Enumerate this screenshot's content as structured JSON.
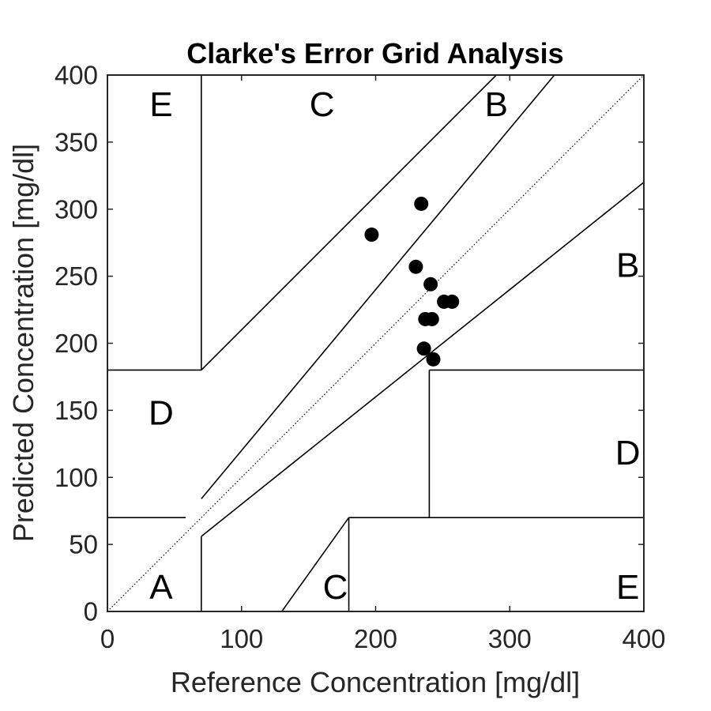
{
  "chart_data": {
    "type": "scatter",
    "title": "Clarke's Error Grid Analysis",
    "xlabel": "Reference Concentration [mg/dl]",
    "ylabel": "Predicted Concentration [mg/dl]",
    "xlim": [
      0,
      400
    ],
    "ylim": [
      0,
      400
    ],
    "xticks": [
      0,
      100,
      200,
      300,
      400
    ],
    "yticks": [
      0,
      50,
      100,
      150,
      200,
      250,
      300,
      350,
      400
    ],
    "grid": false,
    "marker_color": "#000000",
    "points": [
      {
        "x": 197,
        "y": 281
      },
      {
        "x": 234,
        "y": 304
      },
      {
        "x": 230,
        "y": 257
      },
      {
        "x": 241,
        "y": 244
      },
      {
        "x": 251,
        "y": 231
      },
      {
        "x": 257,
        "y": 231
      },
      {
        "x": 237,
        "y": 218
      },
      {
        "x": 242,
        "y": 218
      },
      {
        "x": 236,
        "y": 196
      },
      {
        "x": 243,
        "y": 188
      }
    ],
    "zone_lines": [
      {
        "name": "identity",
        "style": "dotted",
        "points": [
          [
            0,
            0
          ],
          [
            400,
            400
          ]
        ]
      },
      {
        "name": "x-70-upper",
        "points": [
          [
            70,
            180
          ],
          [
            70,
            400
          ]
        ]
      },
      {
        "name": "y-180-left",
        "points": [
          [
            0,
            180
          ],
          [
            70,
            180
          ]
        ]
      },
      {
        "name": "c-upper-boundary",
        "points": [
          [
            70,
            180
          ],
          [
            290,
            400
          ]
        ]
      },
      {
        "name": "b-upper-boundary",
        "points": [
          [
            70,
            84
          ],
          [
            333.3,
            400
          ]
        ]
      },
      {
        "name": "y-70-left",
        "points": [
          [
            0,
            70
          ],
          [
            58.3,
            70
          ]
        ]
      },
      {
        "name": "x-70-lower",
        "points": [
          [
            70,
            0
          ],
          [
            70,
            56
          ]
        ]
      },
      {
        "name": "b-lower-boundary",
        "points": [
          [
            70,
            56
          ],
          [
            400,
            320
          ]
        ]
      },
      {
        "name": "x-240",
        "points": [
          [
            240,
            70
          ],
          [
            240,
            180
          ]
        ]
      },
      {
        "name": "y-180-right",
        "points": [
          [
            240,
            180
          ],
          [
            400,
            180
          ]
        ]
      },
      {
        "name": "y-70-right",
        "points": [
          [
            180,
            70
          ],
          [
            400,
            70
          ]
        ]
      },
      {
        "name": "c-lower-boundary",
        "points": [
          [
            130,
            0
          ],
          [
            180,
            70
          ]
        ]
      },
      {
        "name": "x-180",
        "points": [
          [
            180,
            0
          ],
          [
            180,
            70
          ]
        ]
      }
    ],
    "zone_labels": [
      {
        "text": "E",
        "x": 40,
        "y": 378
      },
      {
        "text": "C",
        "x": 160,
        "y": 378
      },
      {
        "text": "B",
        "x": 290,
        "y": 378
      },
      {
        "text": "B",
        "x": 388,
        "y": 258
      },
      {
        "text": "D",
        "x": 40,
        "y": 148
      },
      {
        "text": "D",
        "x": 388,
        "y": 118
      },
      {
        "text": "A",
        "x": 40,
        "y": 18
      },
      {
        "text": "C",
        "x": 170,
        "y": 18
      },
      {
        "text": "E",
        "x": 388,
        "y": 18
      }
    ]
  }
}
